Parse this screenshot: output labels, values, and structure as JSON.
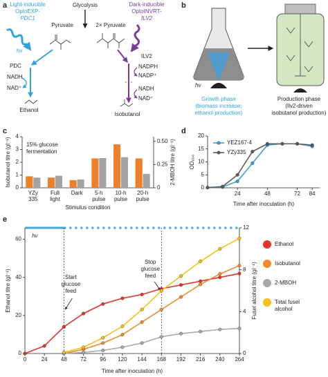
{
  "diagram_a": {
    "label": "a",
    "light_inducible": [
      "Light-inducible",
      "OptoEXP-",
      "PDC1"
    ],
    "glycolysis": "Glycolysis",
    "pyruvate": "Pyruvate",
    "pyruvate2": "2× Pyruvate",
    "dark_inducible": [
      "Dark-inducible",
      "OptoINVRT-",
      "ILV2"
    ],
    "hv": "hν",
    "pdc": "PDC",
    "ilv2": "ILV2",
    "ethanol_cofactors": [
      "NADH",
      "NAD⁺"
    ],
    "ethanol": "Ethanol",
    "isobutanol_cofactors": [
      "NADPH",
      "NADP⁺",
      "NADH",
      "NAD⁺"
    ],
    "isobutanol": "Isobutanol"
  },
  "diagram_b": {
    "label": "b",
    "hv": "hν",
    "growth": [
      "Growth phase",
      "(biomass increase;",
      "ethanol production)"
    ],
    "production": [
      "Production phase",
      "(Ilv2-driven",
      "isobutanol production)"
    ]
  },
  "chart_data": [
    {
      "type": "bar",
      "label": "c",
      "annotation": [
        "15% glucose",
        "fermentation"
      ],
      "categories": [
        [
          "YZy",
          "335"
        ],
        [
          "Full",
          "light"
        ],
        [
          "Dark"
        ],
        [
          "5-h",
          "pulse"
        ],
        [
          "10-h",
          "pulse"
        ],
        [
          "20-h",
          "pulse"
        ]
      ],
      "series": [
        {
          "color": "#f07f2b",
          "values": [
            0.9,
            0.8,
            0.6,
            2.3,
            3.4,
            2.3
          ]
        },
        {
          "color": "#a3a3a3",
          "axis": "y2",
          "values": [
            0.11,
            0.13,
            0.09,
            0.32,
            0.33,
            0.15
          ]
        }
      ],
      "xlabel": "Stimulus condition",
      "ylabel": "Isobutanol titre (gl⁻¹)",
      "y2label": "2-MBOH titre (gl⁻¹)",
      "ylim": [
        0,
        4
      ],
      "yticks": [
        0,
        1,
        2,
        3,
        4
      ],
      "y2lim": [
        0,
        0.55
      ],
      "y2ticks": [
        0,
        0.25,
        {
          "value": 0.5,
          "label": "0.50"
        }
      ]
    },
    {
      "type": "line",
      "label": "d",
      "x": [
        0,
        12,
        24,
        36,
        48,
        60,
        72,
        84
      ],
      "xlim": [
        0,
        90
      ],
      "xticks": [
        24,
        48,
        72,
        84
      ],
      "ylim": [
        0,
        20
      ],
      "yticks": [
        0,
        5,
        10,
        15,
        20
      ],
      "xlabel": "Time after inoculation (h)",
      "ylabel": "OD₆₀₀",
      "legend": "upper left",
      "series": [
        {
          "name": "YEZ167-4",
          "color": "#3a9fd8",
          "values": [
            0.1,
            0.3,
            2.5,
            9.5,
            16.5,
            17,
            17,
            16
          ]
        },
        {
          "name": "YZy335",
          "color": "#5a5a5a",
          "values": [
            0.1,
            0.5,
            5,
            14,
            17,
            17,
            17,
            16.5
          ]
        }
      ]
    },
    {
      "type": "line",
      "label": "e",
      "x": [
        0,
        24,
        48,
        72,
        96,
        120,
        144,
        168,
        192,
        216,
        240,
        264
      ],
      "xlim": [
        0,
        264
      ],
      "xticks": [
        0,
        24,
        48,
        72,
        96,
        120,
        144,
        168,
        192,
        216,
        240,
        264
      ],
      "ylim": [
        0,
        66
      ],
      "yticks": [
        0,
        20,
        40,
        60
      ],
      "y2lim": [
        0,
        12
      ],
      "y2ticks": [
        0,
        4,
        8,
        12
      ],
      "xlabel": "Time after inoculation (h)",
      "ylabel": "Ethanol titre (gl⁻¹)",
      "y2label": "Fusel alcohol titre (gl⁻¹)",
      "legend": "right",
      "light": {
        "label": "hν",
        "on": [
          0,
          48
        ],
        "pulsed": [
          48,
          264
        ]
      },
      "annotations": [
        {
          "lines": [
            "Start",
            "glucose",
            "feed"
          ],
          "x": 48
        },
        {
          "lines": [
            "Stop",
            "glucose",
            "feed"
          ],
          "x": 168
        }
      ],
      "series": [
        {
          "name": "Ethanol",
          "color": "#e5322b",
          "values": [
            0,
            4,
            14,
            21,
            26,
            29,
            31,
            34,
            36,
            38,
            40,
            42
          ]
        },
        {
          "name": "Isobutanol",
          "color": "#f08a2c",
          "axis": "y2",
          "values": [
            null,
            null,
            0,
            0.4,
            1.0,
            1.8,
            3.0,
            4.2,
            5.4,
            6.6,
            7.6,
            8.4
          ]
        },
        {
          "name": "2-MBOH",
          "color": "#a8a8a8",
          "axis": "y2",
          "values": [
            null,
            null,
            0,
            0.1,
            0.3,
            0.6,
            1.0,
            1.6,
            1.9,
            2.1,
            2.3,
            2.4
          ]
        },
        {
          "name": [
            "Total fusel",
            "alcohol"
          ],
          "color": "#f5bf1a",
          "axis": "y2",
          "values": [
            null,
            null,
            0.1,
            0.6,
            1.5,
            2.6,
            4.2,
            6.0,
            7.4,
            8.8,
            10.0,
            11.0
          ]
        }
      ]
    }
  ]
}
